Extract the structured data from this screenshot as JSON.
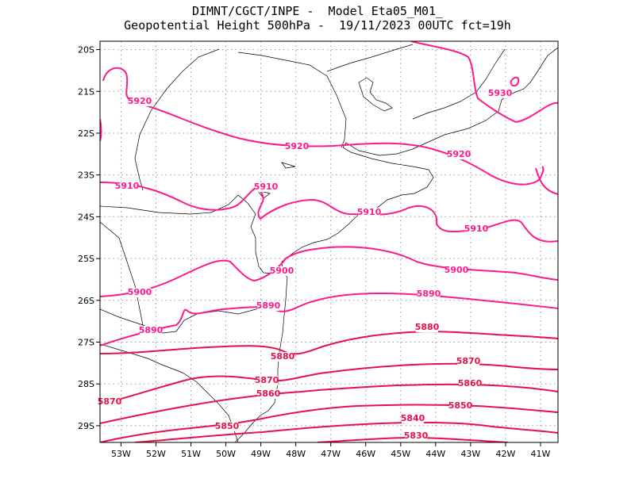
{
  "header": {
    "line1": "DIMNT/CGCT/INPE -  Model Eta05_M01_",
    "line2": "Geopotential Height 500hPa -  19/11/2023 00UTC fct=19h"
  },
  "colors": {
    "contour_pink": "#ff1a8c",
    "contour_red": "#e8104a",
    "coast": "#000000",
    "grid": "#9a9a9a"
  },
  "map": {
    "lon_range": [
      -53.6,
      -40.5
    ],
    "lat_range": [
      -29.4,
      -19.8
    ],
    "lat_ticks": [
      "20S",
      "21S",
      "22S",
      "23S",
      "24S",
      "25S",
      "26S",
      "27S",
      "28S",
      "29S"
    ],
    "lon_ticks": [
      "53W",
      "52W",
      "51W",
      "50W",
      "49W",
      "48W",
      "47W",
      "46W",
      "45W",
      "44W",
      "43W",
      "42W",
      "41W"
    ],
    "grid": "dotted"
  },
  "contours": [
    {
      "level": "5930",
      "labels": [
        "5930"
      ]
    },
    {
      "level": "5920",
      "labels": [
        "5920",
        "5920",
        "5920"
      ]
    },
    {
      "level": "5910",
      "labels": [
        "5910",
        "5910",
        "5910",
        "5910"
      ]
    },
    {
      "level": "5900",
      "labels": [
        "5900",
        "5900",
        "5900"
      ]
    },
    {
      "level": "5890",
      "labels": [
        "5890",
        "5890",
        "5890"
      ]
    },
    {
      "level": "5880",
      "labels": [
        "5880",
        "5880"
      ]
    },
    {
      "level": "5870",
      "labels": [
        "5870",
        "5870",
        "5870"
      ]
    },
    {
      "level": "5860",
      "labels": [
        "5860",
        "5860"
      ]
    },
    {
      "level": "5850",
      "labels": [
        "5850",
        "5850"
      ]
    },
    {
      "level": "5840",
      "labels": [
        "5840"
      ]
    },
    {
      "level": "5830",
      "labels": [
        "5830"
      ]
    }
  ]
}
